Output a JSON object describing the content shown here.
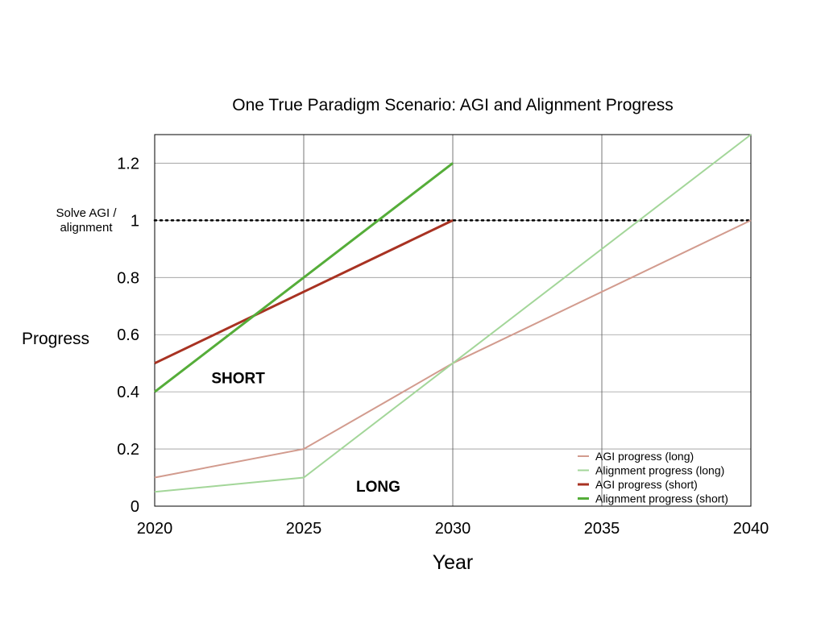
{
  "chart_data": {
    "type": "line",
    "title": "One True Paradigm Scenario: AGI and Alignment Progress",
    "xlabel": "Year",
    "ylabel": "Progress",
    "xlim": [
      2020,
      2040
    ],
    "ylim": [
      0,
      1.3
    ],
    "x_ticks": [
      "2020",
      "2025",
      "2030",
      "2035",
      "2040"
    ],
    "x_tick_values": [
      2020,
      2025,
      2030,
      2035,
      2040
    ],
    "y_ticks": [
      "0",
      "0.2",
      "0.4",
      "0.6",
      "0.8",
      "1",
      "1.2"
    ],
    "y_tick_values": [
      0,
      0.2,
      0.4,
      0.6,
      0.8,
      1,
      1.2
    ],
    "grid": true,
    "legend_position": "bottom-right",
    "reference_line": {
      "y": 1,
      "style": "dotted",
      "color": "#000000",
      "label": "Solve AGI / alignment",
      "label_lines": [
        "Solve AGI /",
        "alignment"
      ]
    },
    "annotations": [
      {
        "text": "SHORT",
        "x": 2022.8,
        "y": 0.45
      },
      {
        "text": "LONG",
        "x": 2027.5,
        "y": 0.07
      }
    ],
    "series": [
      {
        "name": "AGI progress (long)",
        "color": "#d29b8e",
        "width": 2,
        "x": [
          2020,
          2025,
          2030,
          2040
        ],
        "y": [
          0.1,
          0.2,
          0.5,
          1.0
        ]
      },
      {
        "name": "Alignment progress (long)",
        "color": "#a3d699",
        "width": 2,
        "x": [
          2020,
          2025,
          2030,
          2040
        ],
        "y": [
          0.05,
          0.1,
          0.5,
          1.3
        ]
      },
      {
        "name": "AGI progress (short)",
        "color": "#a83222",
        "width": 3,
        "x": [
          2020,
          2030
        ],
        "y": [
          0.5,
          1.0
        ]
      },
      {
        "name": "Alignment progress (short)",
        "color": "#55ad39",
        "width": 3,
        "x": [
          2020,
          2030
        ],
        "y": [
          0.4,
          1.2
        ]
      }
    ]
  }
}
